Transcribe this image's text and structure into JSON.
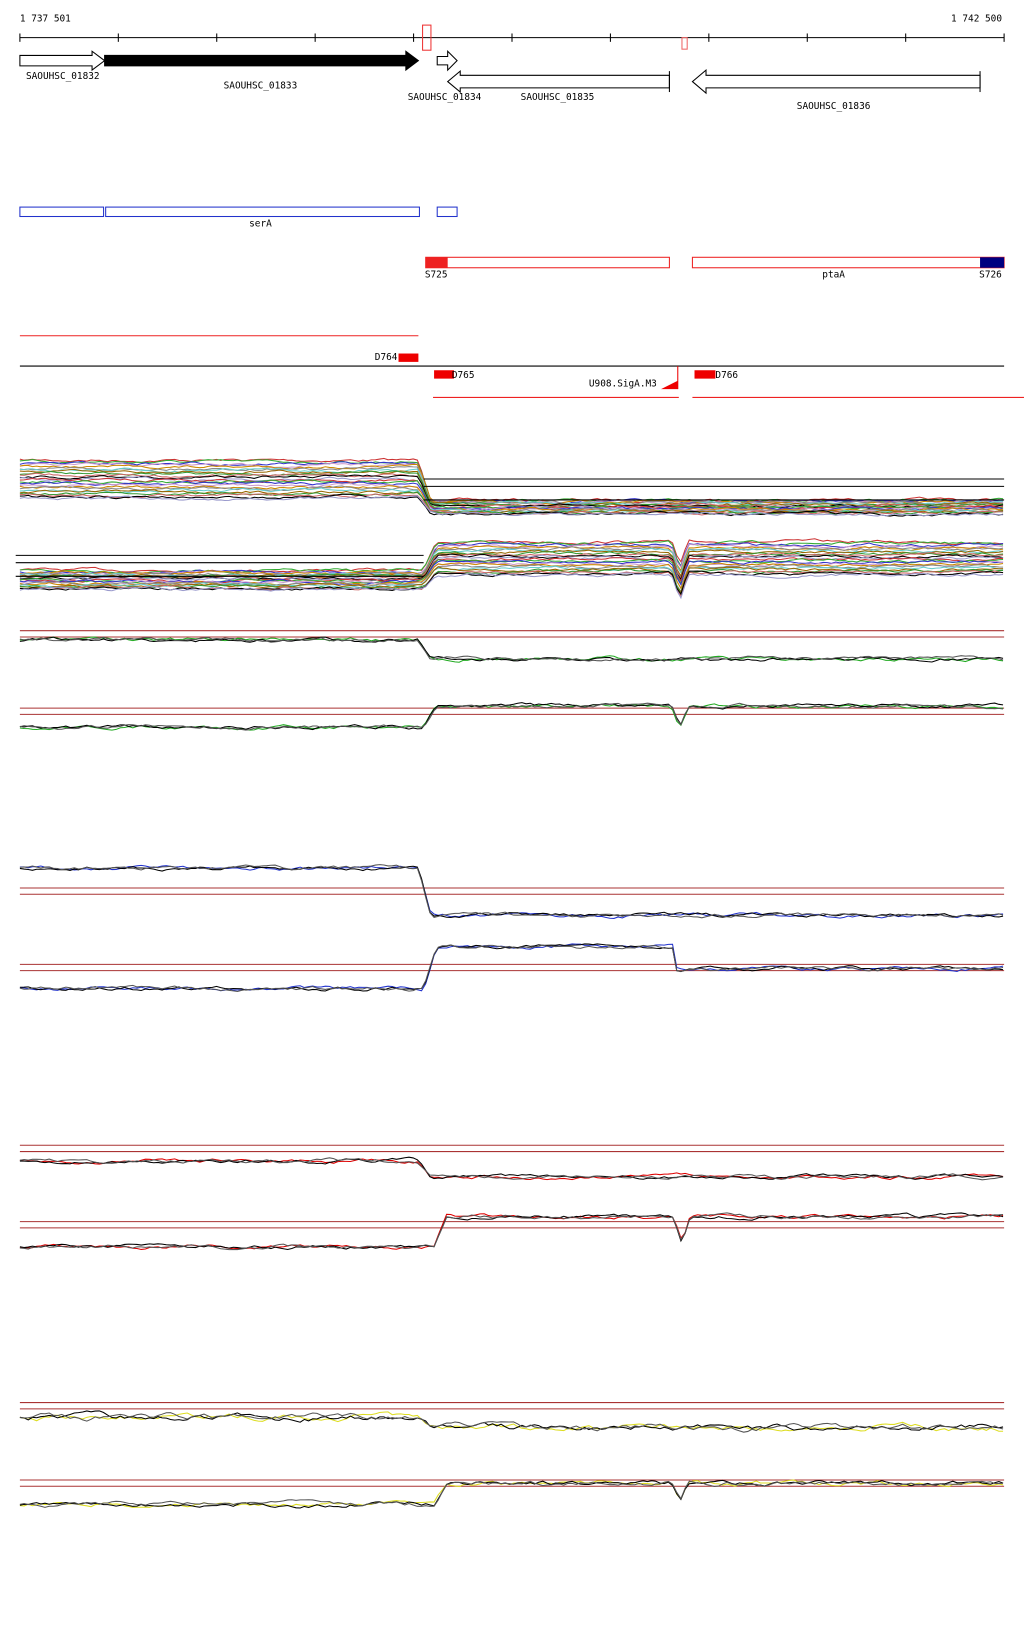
{
  "ruler": {
    "start": "1 737 501",
    "end": "1 742 500"
  },
  "gene_track": {
    "labels": [
      "SAOUHSC_01832",
      "SAOUHSC_01833",
      "SAOUHSC_01834",
      "SAOUHSC_01835",
      "SAOUHSC_01836"
    ]
  },
  "operon_track": {
    "labels": [
      "serA"
    ]
  },
  "transcript_track": {
    "labels": [
      "S725",
      "ptaA",
      "S726"
    ]
  },
  "region_track": {
    "labels": [
      "D764",
      "D765",
      "U908.SigA.M3",
      "D766"
    ]
  }
}
